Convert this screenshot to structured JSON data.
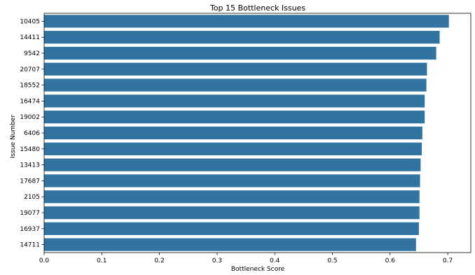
{
  "chart_data": {
    "type": "bar",
    "orientation": "horizontal",
    "title": "Top 15 Bottleneck Issues",
    "xlabel": "Bottleneck Score",
    "ylabel": "Issue Number",
    "xlim": [
      0,
      0.74
    ],
    "xticks": [
      "0.0",
      "0.1",
      "0.2",
      "0.3",
      "0.4",
      "0.5",
      "0.6",
      "0.7"
    ],
    "grid": false,
    "bar_color": "#3274a1",
    "categories": [
      "10405",
      "14411",
      "9542",
      "20707",
      "18552",
      "16474",
      "19002",
      "6406",
      "15480",
      "13413",
      "17687",
      "2105",
      "19077",
      "16937",
      "14711"
    ],
    "values": [
      0.702,
      0.686,
      0.68,
      0.664,
      0.663,
      0.66,
      0.66,
      0.656,
      0.655,
      0.653,
      0.652,
      0.651,
      0.651,
      0.65,
      0.645
    ]
  }
}
